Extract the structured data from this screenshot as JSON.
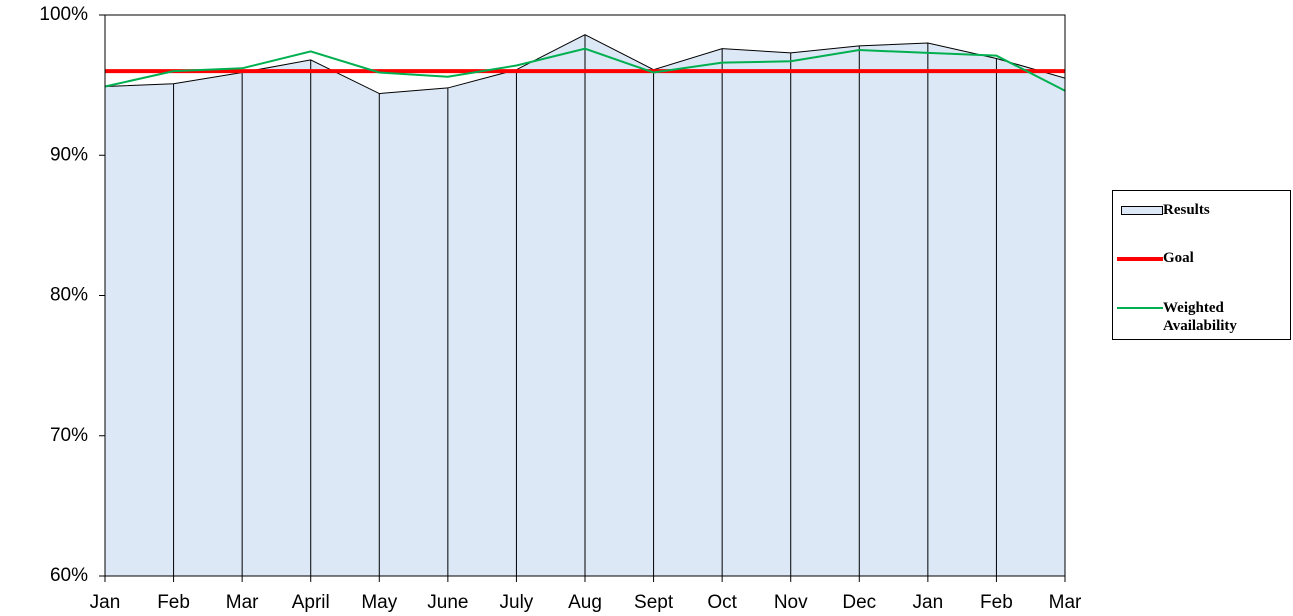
{
  "chart_data": {
    "type": "area",
    "categories": [
      "Jan",
      "Feb",
      "Mar",
      "April",
      "May",
      "June",
      "July",
      "Aug",
      "Sept",
      "Oct",
      "Nov",
      "Dec",
      "Jan",
      "Feb",
      "Mar"
    ],
    "series": [
      {
        "name": "Results",
        "kind": "area",
        "color": "#dce8f5",
        "values": [
          94.9,
          95.1,
          95.9,
          96.8,
          94.4,
          94.8,
          96.1,
          98.6,
          96.1,
          97.6,
          97.3,
          97.8,
          98.0,
          96.9,
          95.5
        ]
      },
      {
        "name": "Goal",
        "kind": "line",
        "color": "#ff0000",
        "values": [
          96,
          96,
          96,
          96,
          96,
          96,
          96,
          96,
          96,
          96,
          96,
          96,
          96,
          96,
          96
        ]
      },
      {
        "name": "Weighted Availability",
        "kind": "line",
        "color": "#00b050",
        "values": [
          94.9,
          96.0,
          96.2,
          97.4,
          95.9,
          95.6,
          96.4,
          97.6,
          95.9,
          96.6,
          96.7,
          97.5,
          97.3,
          97.1,
          94.6
        ]
      }
    ],
    "ylim": [
      60,
      100
    ],
    "yticks": [
      {
        "value": 60,
        "label": "60%"
      },
      {
        "value": 70,
        "label": "70%"
      },
      {
        "value": 80,
        "label": "80%"
      },
      {
        "value": 90,
        "label": "90%"
      },
      {
        "value": 100,
        "label": "100%"
      }
    ],
    "legend": "right"
  }
}
